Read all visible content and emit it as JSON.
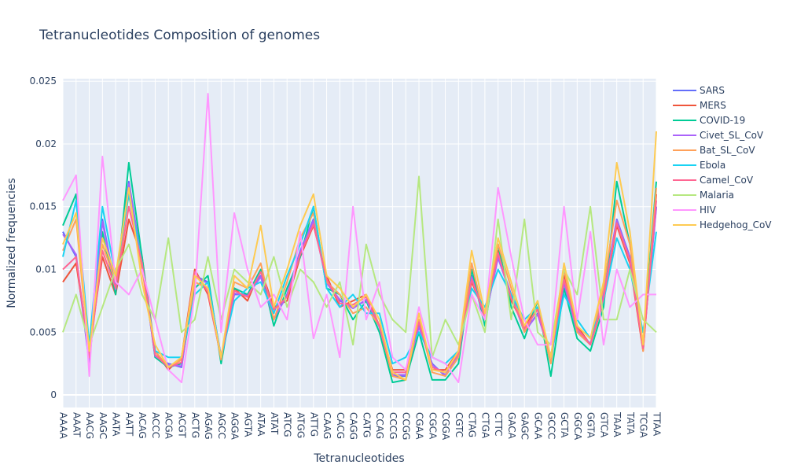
{
  "chart_data": {
    "type": "line",
    "title": "Tetranucleotides Composition of genomes",
    "xlabel": "Tetranucleotides",
    "ylabel": "Normalized frequencies",
    "ylim": [
      -0.001,
      0.0252
    ],
    "yticks": [
      0,
      0.005,
      0.01,
      0.015,
      0.02,
      0.025
    ],
    "ytick_labels": [
      "0",
      "0.005",
      "0.01",
      "0.015",
      "0.02",
      "0.025"
    ],
    "grid": true,
    "legend_position": "top-right",
    "x_tick_labels": [
      "AAAA",
      "AAAT",
      "AACG",
      "AAGC",
      "AATA",
      "AATT",
      "ACAG",
      "ACCC",
      "ACGA",
      "ACGT",
      "ACTG",
      "AGAG",
      "AGCC",
      "AGGA",
      "AGTA",
      "ATAA",
      "ATAT",
      "ATCG",
      "ATGG",
      "ATTG",
      "CAAG",
      "CACG",
      "CAGG",
      "CATG",
      "CCAG",
      "CCCG",
      "CCGG",
      "CGAA",
      "CGCA",
      "CGGA",
      "CGTC",
      "CTAG",
      "CTGA",
      "CTTC",
      "GACA",
      "GAGC",
      "GCAA",
      "GCCC",
      "GCTA",
      "GGCA",
      "GGTA",
      "GTCA",
      "TAAA",
      "TATA",
      "TCGA",
      "TTAA"
    ],
    "x": [
      "AAAA",
      "AAAT",
      "AACG",
      "AAGC",
      "AATA",
      "AATT",
      "ACAG",
      "ACCC",
      "ACGA",
      "ACGT",
      "ACTG",
      "AGAG",
      "AGCC",
      "AGGA",
      "AGTA",
      "ATAA",
      "ATAT",
      "ATCG",
      "ATGG",
      "ATTG",
      "CAAG",
      "CACG",
      "CAGG",
      "CATG",
      "CCAG",
      "CCCG",
      "CCGG",
      "CGAA",
      "CGCA",
      "CGGA",
      "CGTC",
      "CTAG",
      "CTGA",
      "CTTC",
      "GACA",
      "GAGC",
      "GCAA",
      "GCCC",
      "GCTA",
      "GGCA",
      "GGTA",
      "GTCA",
      "TAAA",
      "TATA",
      "TCGA",
      "TTAA"
    ],
    "series": [
      {
        "name": "SARS",
        "color": "#636efa",
        "values": [
          0.013,
          0.011,
          0.0025,
          0.014,
          0.0085,
          0.017,
          0.0105,
          0.003,
          0.0025,
          0.0022,
          0.0095,
          0.009,
          0.003,
          0.008,
          0.008,
          0.0095,
          0.006,
          0.008,
          0.0115,
          0.014,
          0.009,
          0.0075,
          0.007,
          0.0075,
          0.0055,
          0.0015,
          0.0015,
          0.0055,
          0.0025,
          0.0015,
          0.003,
          0.0095,
          0.006,
          0.011,
          0.008,
          0.005,
          0.0065,
          0.003,
          0.009,
          0.005,
          0.004,
          0.008,
          0.014,
          0.011,
          0.004,
          0.015
        ]
      },
      {
        "name": "MERS",
        "color": "#ef553b",
        "values": [
          0.009,
          0.0105,
          0.0035,
          0.011,
          0.008,
          0.014,
          0.011,
          0.0035,
          0.002,
          0.003,
          0.01,
          0.008,
          0.003,
          0.0085,
          0.0075,
          0.01,
          0.007,
          0.0075,
          0.011,
          0.0135,
          0.0095,
          0.007,
          0.0075,
          0.008,
          0.0055,
          0.002,
          0.002,
          0.006,
          0.002,
          0.002,
          0.0035,
          0.009,
          0.0065,
          0.0115,
          0.0075,
          0.0055,
          0.007,
          0.003,
          0.0095,
          0.0055,
          0.004,
          0.0075,
          0.0135,
          0.0105,
          0.0035,
          0.016
        ]
      },
      {
        "name": "COVID-19",
        "color": "#00cc96",
        "values": [
          0.0135,
          0.016,
          0.003,
          0.013,
          0.008,
          0.0185,
          0.011,
          0.003,
          0.0022,
          0.0025,
          0.0085,
          0.0095,
          0.0025,
          0.0085,
          0.008,
          0.01,
          0.0055,
          0.0085,
          0.011,
          0.015,
          0.0085,
          0.008,
          0.006,
          0.0075,
          0.005,
          0.001,
          0.0012,
          0.005,
          0.0012,
          0.0012,
          0.0025,
          0.01,
          0.0055,
          0.012,
          0.007,
          0.0045,
          0.0075,
          0.0015,
          0.0085,
          0.0045,
          0.0035,
          0.007,
          0.017,
          0.012,
          0.004,
          0.017
        ]
      },
      {
        "name": "Civet_SL_CoV",
        "color": "#ab63fa",
        "values": [
          0.0128,
          0.0112,
          0.0026,
          0.0138,
          0.0084,
          0.0168,
          0.0104,
          0.0031,
          0.0024,
          0.0023,
          0.0094,
          0.0089,
          0.0031,
          0.0081,
          0.0079,
          0.0094,
          0.0061,
          0.0079,
          0.0114,
          0.0139,
          0.0089,
          0.0076,
          0.0069,
          0.0076,
          0.0054,
          0.0016,
          0.0016,
          0.0054,
          0.0024,
          0.0016,
          0.0031,
          0.0094,
          0.0061,
          0.0109,
          0.0079,
          0.0051,
          0.0064,
          0.0031,
          0.0089,
          0.0051,
          0.0041,
          0.0079,
          0.0139,
          0.0109,
          0.0041,
          0.0149
        ]
      },
      {
        "name": "Bat_SL_CoV",
        "color": "#ffa15a",
        "values": [
          0.0115,
          0.014,
          0.003,
          0.012,
          0.009,
          0.016,
          0.01,
          0.0035,
          0.0022,
          0.0028,
          0.009,
          0.0085,
          0.0028,
          0.009,
          0.0085,
          0.0105,
          0.006,
          0.009,
          0.0125,
          0.0145,
          0.009,
          0.008,
          0.0065,
          0.007,
          0.0055,
          0.0015,
          0.0012,
          0.006,
          0.0018,
          0.0015,
          0.003,
          0.0105,
          0.006,
          0.012,
          0.0085,
          0.005,
          0.007,
          0.0025,
          0.01,
          0.005,
          0.004,
          0.0085,
          0.0155,
          0.012,
          0.0035,
          0.0165
        ]
      },
      {
        "name": "Ebola",
        "color": "#19d3f3",
        "values": [
          0.011,
          0.0155,
          0.004,
          0.015,
          0.0095,
          0.016,
          0.0105,
          0.0035,
          0.003,
          0.003,
          0.008,
          0.009,
          0.003,
          0.0075,
          0.0085,
          0.009,
          0.0065,
          0.0095,
          0.012,
          0.015,
          0.0085,
          0.007,
          0.008,
          0.0065,
          0.0065,
          0.0025,
          0.003,
          0.005,
          0.003,
          0.0025,
          0.0035,
          0.0085,
          0.007,
          0.01,
          0.008,
          0.006,
          0.007,
          0.003,
          0.008,
          0.006,
          0.0045,
          0.0075,
          0.0125,
          0.01,
          0.005,
          0.013
        ]
      },
      {
        "name": "Camel_CoV",
        "color": "#ff6692",
        "values": [
          0.01,
          0.011,
          0.003,
          0.0115,
          0.0085,
          0.015,
          0.0105,
          0.0032,
          0.0022,
          0.0026,
          0.0098,
          0.0082,
          0.003,
          0.0083,
          0.0078,
          0.0098,
          0.0068,
          0.0078,
          0.0112,
          0.0136,
          0.0092,
          0.0073,
          0.0072,
          0.0078,
          0.0055,
          0.0018,
          0.0018,
          0.0058,
          0.0022,
          0.0018,
          0.0033,
          0.0092,
          0.0063,
          0.0113,
          0.0077,
          0.0053,
          0.0068,
          0.003,
          0.0092,
          0.0053,
          0.004,
          0.0077,
          0.0137,
          0.0107,
          0.0037,
          0.0155
        ]
      },
      {
        "name": "Malaria",
        "color": "#b6e880",
        "values": [
          0.005,
          0.008,
          0.004,
          0.007,
          0.01,
          0.012,
          0.008,
          0.006,
          0.0125,
          0.005,
          0.006,
          0.011,
          0.006,
          0.01,
          0.009,
          0.008,
          0.011,
          0.007,
          0.01,
          0.009,
          0.007,
          0.009,
          0.004,
          0.012,
          0.008,
          0.006,
          0.005,
          0.0174,
          0.003,
          0.006,
          0.004,
          0.008,
          0.005,
          0.014,
          0.006,
          0.014,
          0.005,
          0.004,
          0.01,
          0.008,
          0.015,
          0.006,
          0.006,
          0.01,
          0.006,
          0.005
        ]
      },
      {
        "name": "HIV",
        "color": "#ff97ff",
        "values": [
          0.0155,
          0.0175,
          0.0015,
          0.019,
          0.009,
          0.008,
          0.01,
          0.006,
          0.002,
          0.001,
          0.008,
          0.024,
          0.005,
          0.0145,
          0.01,
          0.007,
          0.008,
          0.006,
          0.013,
          0.0045,
          0.008,
          0.003,
          0.015,
          0.006,
          0.009,
          0.003,
          0.002,
          0.007,
          0.003,
          0.0025,
          0.001,
          0.008,
          0.006,
          0.0165,
          0.011,
          0.006,
          0.004,
          0.004,
          0.015,
          0.006,
          0.013,
          0.004,
          0.01,
          0.007,
          0.008,
          0.008
        ]
      },
      {
        "name": "Hedgehog_CoV",
        "color": "#fecb52",
        "values": [
          0.012,
          0.0145,
          0.0035,
          0.0125,
          0.0095,
          0.0165,
          0.009,
          0.004,
          0.0022,
          0.003,
          0.0095,
          0.0085,
          0.003,
          0.0095,
          0.0085,
          0.0135,
          0.007,
          0.01,
          0.0135,
          0.016,
          0.0095,
          0.0085,
          0.007,
          0.008,
          0.006,
          0.0018,
          0.0012,
          0.0065,
          0.002,
          0.0018,
          0.0035,
          0.0115,
          0.0065,
          0.0125,
          0.009,
          0.0055,
          0.0075,
          0.003,
          0.0105,
          0.0055,
          0.0045,
          0.009,
          0.0185,
          0.013,
          0.004,
          0.021
        ]
      }
    ]
  }
}
